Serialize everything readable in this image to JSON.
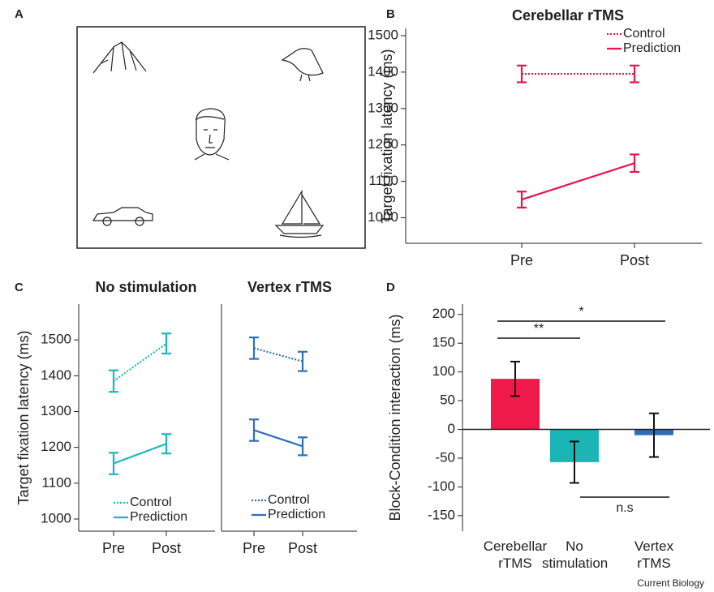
{
  "figure": {
    "panel_labels": [
      "A",
      "B",
      "C",
      "D"
    ],
    "credit": "Current Biology"
  },
  "chart_data": [
    {
      "type": "line",
      "title": "Cerebellar rTMS",
      "ylabel": "Target fixation latency (ms)",
      "categories": [
        "Pre",
        "Post"
      ],
      "series": [
        {
          "name": "Control",
          "color": "#e8174a",
          "line_style": "dotted",
          "values": [
            1395,
            1395
          ],
          "errors": [
            23,
            23
          ]
        },
        {
          "name": "Prediction",
          "color": "#e8174a",
          "line_style": "solid",
          "values": [
            1050,
            1150
          ],
          "errors": [
            22,
            24
          ]
        }
      ],
      "ylim": [
        930,
        1520
      ],
      "yticks": [
        1000,
        1100,
        1200,
        1300,
        1400,
        1500
      ]
    },
    {
      "type": "line",
      "title": "No stimulation",
      "ylabel": "Target fixation latency (ms)",
      "categories": [
        "Pre",
        "Post"
      ],
      "series": [
        {
          "name": "Control",
          "color": "#19b8b8",
          "line_style": "dotted",
          "values": [
            1385,
            1490
          ],
          "errors": [
            30,
            28
          ]
        },
        {
          "name": "Prediction",
          "color": "#19b8b8",
          "line_style": "solid",
          "values": [
            1155,
            1210
          ],
          "errors": [
            30,
            27
          ]
        }
      ],
      "ylim": [
        966,
        1600
      ],
      "yticks": [
        1000,
        1100,
        1200,
        1300,
        1400,
        1500
      ]
    },
    {
      "type": "line",
      "title": "Vertex rTMS",
      "categories": [
        "Pre",
        "Post"
      ],
      "series": [
        {
          "name": "Control",
          "color": "#2f6fb8",
          "line_style": "dotted",
          "values": [
            1477,
            1440
          ],
          "errors": [
            30,
            27
          ]
        },
        {
          "name": "Prediction",
          "color": "#2f6fb8",
          "line_style": "solid",
          "values": [
            1248,
            1203
          ],
          "errors": [
            30,
            25
          ]
        }
      ],
      "ylim": [
        966,
        1600
      ]
    },
    {
      "type": "bar",
      "ylabel": "Block-Condition interaction (ms)",
      "categories": [
        "Cerebellar rTMS",
        "No stimulation",
        "Vertex rTMS"
      ],
      "values": [
        88,
        -57,
        -10
      ],
      "errors": [
        30,
        36,
        38
      ],
      "colors": [
        "#ef1a4a",
        "#1cb5b5",
        "#2e6db5"
      ],
      "ylim": [
        -177,
        218
      ],
      "yticks": [
        -150,
        -100,
        -50,
        0,
        50,
        100,
        150,
        200
      ],
      "annotations": [
        "*",
        "**",
        "n.s"
      ]
    }
  ]
}
